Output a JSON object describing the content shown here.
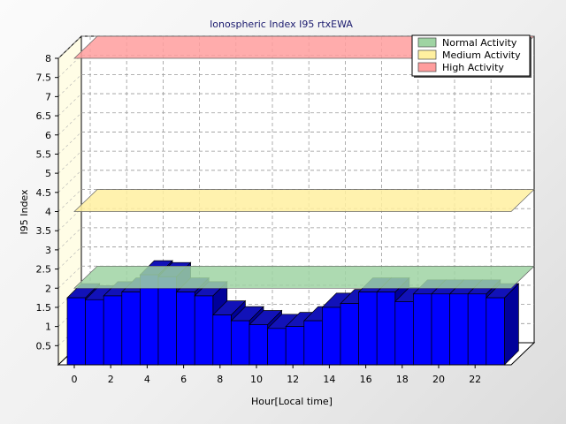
{
  "chart_data": {
    "type": "bar",
    "title": "Ionospheric Index I95 rtxEWA",
    "xlabel": "Hour[Local time]",
    "ylabel": "I95 Index",
    "ylim": [
      0,
      8
    ],
    "x_ticks": [
      "0",
      "2",
      "4",
      "6",
      "8",
      "10",
      "12",
      "14",
      "16",
      "18",
      "20",
      "22"
    ],
    "y_ticks": [
      "0.5",
      "1",
      "1.5",
      "2",
      "2.5",
      "3",
      "3.5",
      "4",
      "4.5",
      "5",
      "5.5",
      "6",
      "6.5",
      "7",
      "7.5",
      "8"
    ],
    "hours": [
      0,
      1,
      2,
      3,
      4,
      5,
      6,
      7,
      8,
      9,
      10,
      11,
      12,
      13,
      14,
      15,
      16,
      17,
      18,
      19,
      20,
      21,
      22,
      23
    ],
    "values": [
      1.75,
      1.7,
      1.8,
      1.9,
      2.35,
      2.3,
      1.9,
      1.8,
      1.3,
      1.15,
      1.05,
      0.95,
      1.0,
      1.15,
      1.5,
      1.6,
      1.9,
      1.9,
      1.65,
      1.85,
      1.85,
      1.85,
      1.85,
      1.75
    ],
    "bar_color": "#0000ff",
    "bands": [
      {
        "name": "Normal Activity",
        "value": 2.0,
        "color": "#9fd4a3"
      },
      {
        "name": "Medium Activity",
        "value": 4.0,
        "color": "#fff0a0"
      },
      {
        "name": "High Activity",
        "value": 8.0,
        "color": "#ff9d9d"
      }
    ],
    "legend_position": "top-right",
    "grid": true
  }
}
